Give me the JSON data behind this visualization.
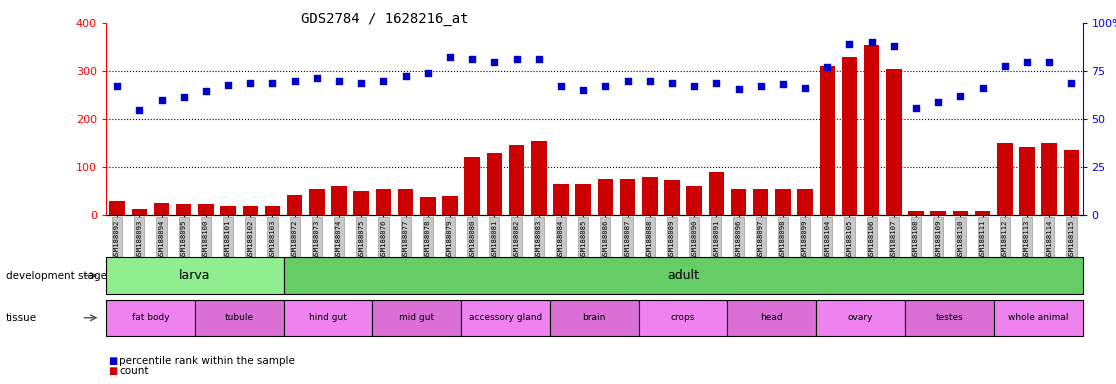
{
  "title": "GDS2784 / 1628216_at",
  "samples": [
    "GSM188092",
    "GSM188093",
    "GSM188094",
    "GSM188095",
    "GSM188100",
    "GSM188101",
    "GSM188102",
    "GSM188103",
    "GSM188072",
    "GSM188073",
    "GSM188074",
    "GSM188075",
    "GSM188076",
    "GSM188077",
    "GSM188078",
    "GSM188079",
    "GSM188080",
    "GSM188081",
    "GSM188082",
    "GSM188083",
    "GSM188084",
    "GSM188085",
    "GSM188086",
    "GSM188087",
    "GSM188088",
    "GSM188089",
    "GSM188090",
    "GSM188091",
    "GSM188096",
    "GSM188097",
    "GSM188098",
    "GSM188099",
    "GSM188104",
    "GSM188105",
    "GSM188106",
    "GSM188107",
    "GSM188108",
    "GSM188109",
    "GSM188110",
    "GSM188111",
    "GSM188112",
    "GSM188113",
    "GSM188114",
    "GSM188115"
  ],
  "count": [
    30,
    12,
    25,
    22,
    22,
    18,
    18,
    18,
    42,
    55,
    60,
    50,
    55,
    55,
    38,
    40,
    120,
    130,
    145,
    155,
    65,
    65,
    75,
    75,
    80,
    72,
    60,
    90,
    55,
    55,
    55,
    55,
    310,
    330,
    355,
    305,
    8,
    8,
    8,
    8,
    150,
    142,
    150,
    135
  ],
  "percentile": [
    268,
    218,
    240,
    245,
    258,
    270,
    275,
    275,
    280,
    285,
    280,
    275,
    280,
    290,
    295,
    330,
    325,
    318,
    325,
    325,
    268,
    260,
    268,
    280,
    280,
    275,
    268,
    275,
    262,
    268,
    272,
    265,
    308,
    356,
    360,
    352,
    222,
    235,
    248,
    265,
    310,
    318,
    318,
    275
  ],
  "dev_stage": [
    {
      "label": "larva",
      "start": 0,
      "end": 8,
      "color": "#90EE90"
    },
    {
      "label": "adult",
      "start": 8,
      "end": 44,
      "color": "#66CC66"
    }
  ],
  "tissue": [
    {
      "label": "fat body",
      "start": 0,
      "end": 4,
      "color": "#EE82EE"
    },
    {
      "label": "tubule",
      "start": 4,
      "end": 8,
      "color": "#DA70D6"
    },
    {
      "label": "hind gut",
      "start": 8,
      "end": 12,
      "color": "#EE82EE"
    },
    {
      "label": "mid gut",
      "start": 12,
      "end": 16,
      "color": "#DA70D6"
    },
    {
      "label": "accessory gland",
      "start": 16,
      "end": 20,
      "color": "#EE82EE"
    },
    {
      "label": "brain",
      "start": 20,
      "end": 24,
      "color": "#DA70D6"
    },
    {
      "label": "crops",
      "start": 24,
      "end": 28,
      "color": "#EE82EE"
    },
    {
      "label": "head",
      "start": 28,
      "end": 32,
      "color": "#DA70D6"
    },
    {
      "label": "ovary",
      "start": 32,
      "end": 36,
      "color": "#EE82EE"
    },
    {
      "label": "testes",
      "start": 36,
      "end": 40,
      "color": "#DA70D6"
    },
    {
      "label": "whole animal",
      "start": 40,
      "end": 44,
      "color": "#EE82EE"
    }
  ],
  "bar_color": "#CC0000",
  "dot_color": "#0000CC",
  "bg_color": "#FFFFFF"
}
